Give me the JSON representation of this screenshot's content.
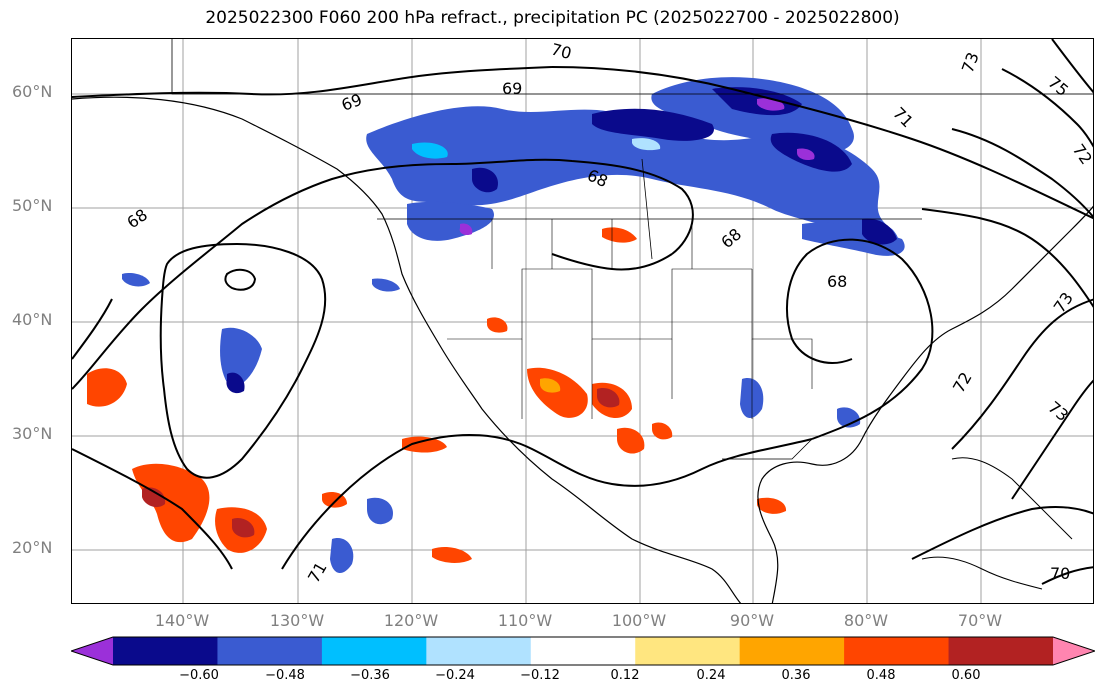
{
  "title": "2025022300 F060 200 hPa refract., precipitation PC (2025022700 - 2025022800)",
  "lat_labels": [
    "60°N",
    "50°N",
    "40°N",
    "30°N",
    "20°N"
  ],
  "lon_labels": [
    "140°W",
    "130°W",
    "120°W",
    "110°W",
    "100°W",
    "90°W",
    "80°W",
    "70°W"
  ],
  "contour_labels": [
    "70",
    "69",
    "69",
    "68",
    "68",
    "68",
    "68",
    "75",
    "73",
    "72",
    "71",
    "73",
    "72",
    "73",
    "71",
    "70"
  ],
  "colorbar": {
    "ticks": [
      "−0.60",
      "−0.48",
      "−0.36",
      "−0.24",
      "−0.12",
      "0.12",
      "0.24",
      "0.36",
      "0.48",
      "0.60"
    ],
    "colors": [
      "#9b30d9",
      "#0a0a8c",
      "#3a5bd1",
      "#00bfff",
      "#b0e2ff",
      "#ffffff",
      "#ffe680",
      "#ffa500",
      "#ff4500",
      "#b22222",
      "#ff85b0"
    ]
  }
}
